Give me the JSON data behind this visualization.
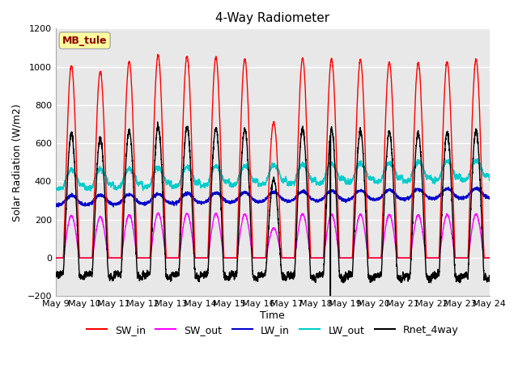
{
  "title": "4-Way Radiometer",
  "xlabel": "Time",
  "ylabel": "Solar Radiation (W/m2)",
  "ylim": [
    -200,
    1200
  ],
  "n_days": 15,
  "x_tick_labels": [
    "May 9",
    "May 10",
    "May 11",
    "May 12",
    "May 13",
    "May 14",
    "May 15",
    "May 16",
    "May 17",
    "May 18",
    "May 19",
    "May 20",
    "May 21",
    "May 22",
    "May 23",
    "May 24"
  ],
  "station_label": "MB_tule",
  "station_label_color": "#8B0000",
  "station_label_bg": "#FFFFA0",
  "station_label_edge": "#AAAAAA",
  "plot_bg_color": "#E8E8E8",
  "fig_bg_color": "#FFFFFF",
  "grid_color": "#FFFFFF",
  "colors": {
    "SW_in": "#FF0000",
    "SW_out": "#FF00FF",
    "LW_in": "#0000CC",
    "LW_out": "#00CCCC",
    "Rnet_4way": "#000000"
  },
  "sw_in_peaks": [
    1005,
    975,
    1025,
    1060,
    1055,
    1050,
    1040,
    710,
    1045,
    1040,
    1035,
    1025,
    1020,
    1025,
    1040
  ],
  "lw_in_base": 290,
  "lw_out_base": 380,
  "line_width": 1.0,
  "title_fontsize": 11,
  "axis_label_fontsize": 9,
  "tick_fontsize": 8,
  "legend_fontsize": 9
}
